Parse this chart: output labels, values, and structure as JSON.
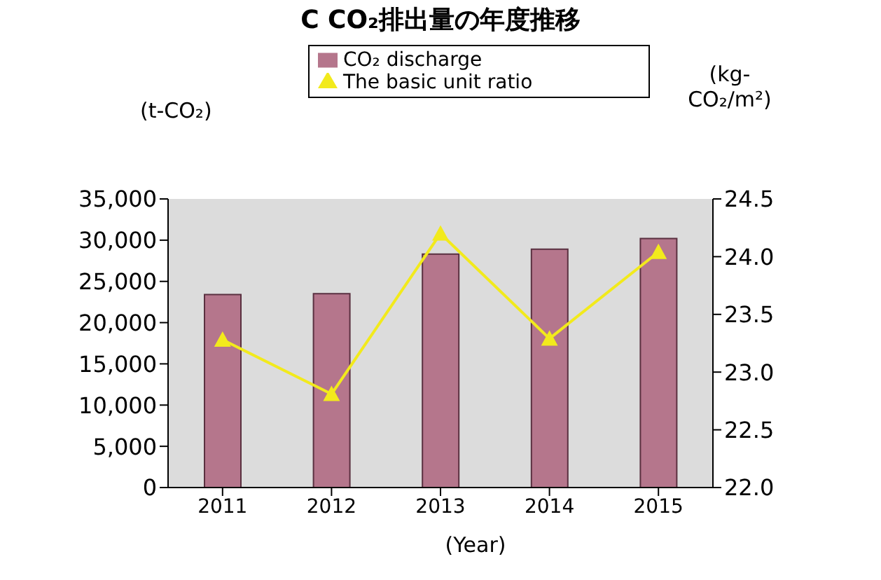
{
  "chart_data": {
    "type": "bar",
    "title": "C CO₂排出量の年度推移",
    "xlabel": "(Year)",
    "ylabel": "(t-CO₂)",
    "y2label": "(kg-CO₂/m²)",
    "categories": [
      "2011",
      "2012",
      "2013",
      "2014",
      "2015"
    ],
    "series": [
      {
        "name": "CO₂ discharge",
        "color": "#b5768c",
        "values": [
          23400,
          23500,
          28300,
          28900,
          30200
        ]
      },
      {
        "name": "The basic unit ratio",
        "type": "line",
        "axis": "y2",
        "color": "#f2ea1c",
        "marker": "triangle",
        "values": [
          23.28,
          22.81,
          24.2,
          23.29,
          24.04
        ]
      }
    ],
    "ylim": [
      0,
      35000
    ],
    "yticks": [
      0,
      {
        "value": 5000,
        "label": "5,000"
      },
      {
        "value": 10000,
        "label": "10,000"
      },
      {
        "value": 15000,
        "label": "15,000"
      },
      {
        "value": 20000,
        "label": "20,000"
      },
      {
        "value": 25000,
        "label": "25,000"
      },
      {
        "value": 30000,
        "label": "30,000"
      },
      {
        "value": 35000,
        "label": "35,000"
      }
    ],
    "y2lim": [
      22,
      24.5
    ],
    "y2ticks": [
      {
        "value": 22,
        "label": "22.0"
      },
      22.5,
      {
        "value": 23,
        "label": "23.0"
      },
      23.5,
      {
        "value": 24,
        "label": "24.0"
      },
      24.5
    ],
    "legend": "top",
    "grid": false
  }
}
